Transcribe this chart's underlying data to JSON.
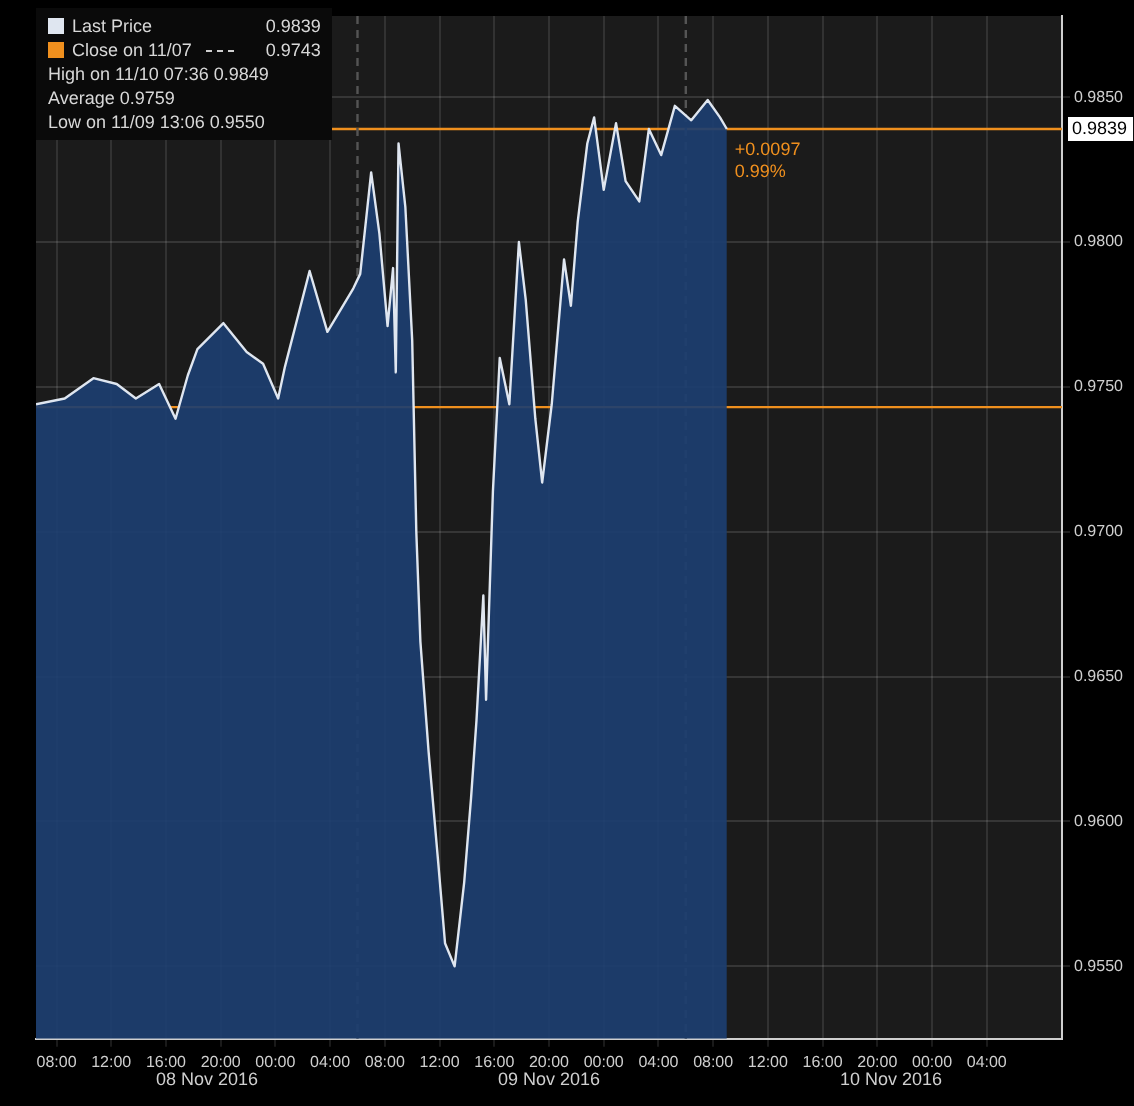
{
  "chart_data": {
    "type": "area",
    "x": [
      "2016-11-08T06:30",
      "2016-11-08T08:36",
      "2016-11-08T10:42",
      "2016-11-08T12:24",
      "2016-11-08T13:48",
      "2016-11-08T15:30",
      "2016-11-08T16:42",
      "2016-11-08T17:36",
      "2016-11-08T18:18",
      "2016-11-08T20:12",
      "2016-11-08T21:54",
      "2016-11-08T23:06",
      "2016-11-09T00:12",
      "2016-11-09T00:42",
      "2016-11-09T02:30",
      "2016-11-09T03:48",
      "2016-11-09T05:42",
      "2016-11-09T06:12",
      "2016-11-09T07:00",
      "2016-11-09T07:36",
      "2016-11-09T08:12",
      "2016-11-09T08:36",
      "2016-11-09T08:48",
      "2016-11-09T09:00",
      "2016-11-09T09:30",
      "2016-11-09T10:00",
      "2016-11-09T10:18",
      "2016-11-09T10:36",
      "2016-11-09T11:12",
      "2016-11-09T11:54",
      "2016-11-09T12:24",
      "2016-11-09T13:06",
      "2016-11-09T13:48",
      "2016-11-09T14:18",
      "2016-11-09T14:42",
      "2016-11-09T15:12",
      "2016-11-09T15:24",
      "2016-11-09T15:54",
      "2016-11-09T16:24",
      "2016-11-09T17:06",
      "2016-11-09T17:48",
      "2016-11-09T18:18",
      "2016-11-09T19:00",
      "2016-11-09T19:30",
      "2016-11-09T20:12",
      "2016-11-09T21:06",
      "2016-11-09T21:36",
      "2016-11-09T22:06",
      "2016-11-09T22:48",
      "2016-11-09T23:18",
      "2016-11-10T00:00",
      "2016-11-10T00:54",
      "2016-11-10T01:36",
      "2016-11-10T02:36",
      "2016-11-10T03:18",
      "2016-11-10T04:12",
      "2016-11-10T05:12",
      "2016-11-10T06:24",
      "2016-11-10T07:36",
      "2016-11-10T08:30",
      "2016-11-10T09:00"
    ],
    "series": [
      {
        "name": "Last Price",
        "color": "#dfe6f0",
        "values": [
          0.9744,
          0.9746,
          0.9753,
          0.9751,
          0.9746,
          0.9751,
          0.9739,
          0.9754,
          0.9763,
          0.9772,
          0.9762,
          0.9758,
          0.9746,
          0.9757,
          0.979,
          0.9769,
          0.9784,
          0.9789,
          0.9824,
          0.9803,
          0.9771,
          0.9791,
          0.9755,
          0.9834,
          0.9812,
          0.9766,
          0.97,
          0.9662,
          0.9624,
          0.9586,
          0.9558,
          0.955,
          0.9579,
          0.9608,
          0.9635,
          0.9678,
          0.9642,
          0.9714,
          0.976,
          0.9744,
          0.98,
          0.978,
          0.9739,
          0.9717,
          0.9744,
          0.9794,
          0.9778,
          0.9807,
          0.9834,
          0.9843,
          0.9818,
          0.9841,
          0.9821,
          0.9814,
          0.9839,
          0.983,
          0.9847,
          0.9842,
          0.9849,
          0.9843,
          0.9839
        ]
      }
    ],
    "xlim": [
      "2016-11-08T06:30",
      "2016-11-11T09:30"
    ],
    "xticks": [
      {
        "value": "2016-11-08T08:00",
        "label": "08:00"
      },
      {
        "value": "2016-11-08T12:00",
        "label": "12:00"
      },
      {
        "value": "2016-11-08T16:00",
        "label": "16:00"
      },
      {
        "value": "2016-11-08T20:00",
        "label": "20:00"
      },
      {
        "value": "2016-11-09T00:00",
        "label": "00:00"
      },
      {
        "value": "2016-11-09T04:00",
        "label": "04:00"
      },
      {
        "value": "2016-11-09T08:00",
        "label": "08:00"
      },
      {
        "value": "2016-11-09T12:00",
        "label": "12:00"
      },
      {
        "value": "2016-11-09T16:00",
        "label": "16:00"
      },
      {
        "value": "2016-11-09T20:00",
        "label": "20:00"
      },
      {
        "value": "2016-11-10T00:00",
        "label": "00:00"
      },
      {
        "value": "2016-11-10T04:00",
        "label": "04:00"
      },
      {
        "value": "2016-11-10T08:00",
        "label": "08:00"
      },
      {
        "value": "2016-11-10T12:00",
        "label": "12:00"
      },
      {
        "value": "2016-11-10T16:00",
        "label": "16:00"
      },
      {
        "value": "2016-11-10T20:00",
        "label": "20:00"
      },
      {
        "value": "2016-11-11T00:00",
        "label": "00:00"
      },
      {
        "value": "2016-11-11T04:00",
        "label": "04:00"
      }
    ],
    "ylim": [
      0.9525,
      0.9878
    ],
    "yticks": [
      {
        "value": 0.955,
        "label": "0.9550"
      },
      {
        "value": 0.96,
        "label": "0.9600"
      },
      {
        "value": 0.965,
        "label": "0.9650"
      },
      {
        "value": 0.97,
        "label": "0.9700"
      },
      {
        "value": 0.975,
        "label": "0.9750"
      },
      {
        "value": 0.98,
        "label": "0.9800"
      },
      {
        "value": 0.985,
        "label": "0.9850"
      }
    ],
    "ref_lines": [
      {
        "axis": "y",
        "value": 0.9743,
        "label": "Close on 11/07",
        "color": "#f0901e"
      },
      {
        "axis": "y",
        "value": 0.9839,
        "color": "#f0901e"
      },
      {
        "axis": "x",
        "value": "2016-11-09T06:00",
        "color": "#555555",
        "line_style": "dashed"
      },
      {
        "axis": "x",
        "value": "2016-11-10T06:00",
        "color": "#555555",
        "line_style": "dashed"
      }
    ],
    "annotations": [
      "0.9839",
      "0.9743",
      "High on 11/10 07:36 0.9849",
      "Average 0.9759",
      "Low on 11/09 13:06 0.9550",
      {
        "text": "+0.0097",
        "x": "2016-11-10T09:00",
        "y": 0.9839
      },
      {
        "text": "0.99%",
        "x": "2016-11-10T09:00",
        "y": 0.9839
      },
      "08 Nov 2016",
      "09 Nov 2016",
      "10 Nov 2016"
    ],
    "grid": true,
    "legend": "top left"
  }
}
